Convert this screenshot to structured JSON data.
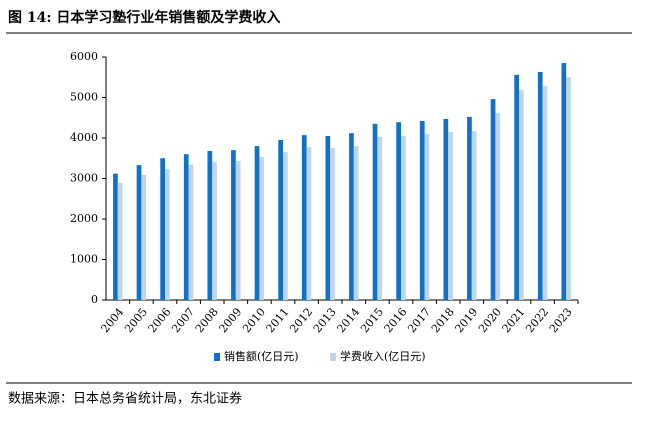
{
  "chart_data": {
    "type": "bar",
    "title": "图 14: 日本学习塾行业年销售额及学费收入",
    "source": "数据来源：日本总务省统计局，东北证券",
    "categories": [
      "2004",
      "2005",
      "2006",
      "2007",
      "2008",
      "2009",
      "2010",
      "2011",
      "2012",
      "2013",
      "2014",
      "2015",
      "2016",
      "2017",
      "2018",
      "2019",
      "2020",
      "2021",
      "2022",
      "2023"
    ],
    "series": [
      {
        "name": "销售额(亿日元)",
        "color": "#1170c8",
        "values": [
          3120,
          3330,
          3500,
          3600,
          3680,
          3700,
          3800,
          3950,
          4070,
          4050,
          4120,
          4350,
          4390,
          4420,
          4470,
          4520,
          4960,
          5560,
          5630,
          5850
        ]
      },
      {
        "name": "学费收入(亿日元)",
        "color": "#bcd6f0",
        "values": [
          2890,
          3090,
          3240,
          3340,
          3410,
          3430,
          3530,
          3650,
          3780,
          3750,
          3800,
          4030,
          4050,
          4100,
          4150,
          4170,
          4620,
          5190,
          5280,
          5500
        ]
      }
    ],
    "ylim": [
      0,
      6000
    ],
    "yticks": [
      0,
      1000,
      2000,
      3000,
      4000,
      5000,
      6000
    ],
    "grid": false
  }
}
